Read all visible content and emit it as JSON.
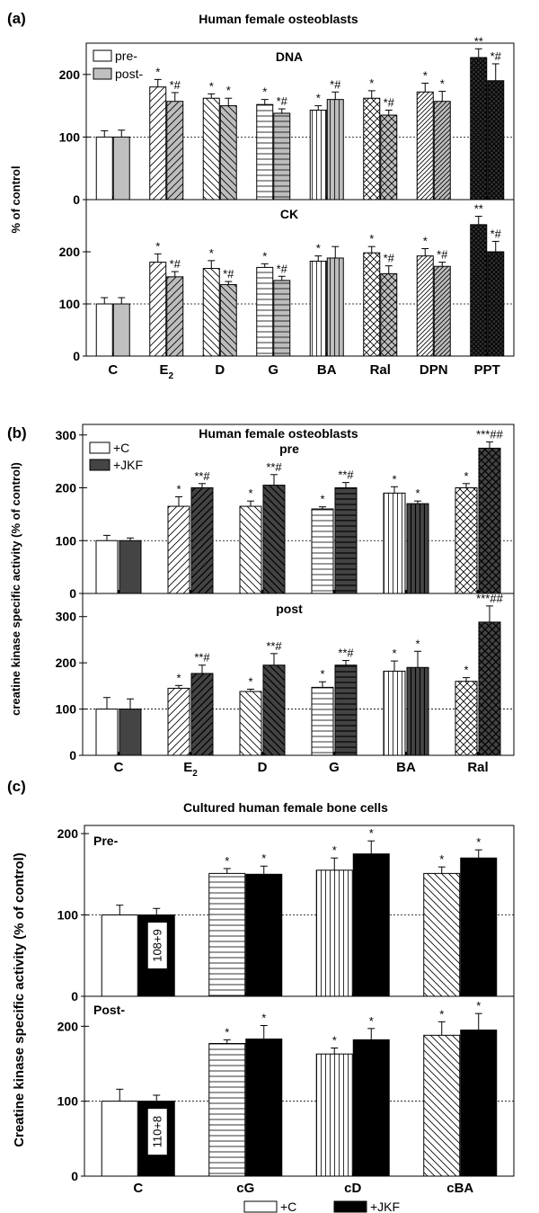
{
  "chart_data": [
    {
      "panel_label": "(a)",
      "type": "bar",
      "title": "Human female osteoblasts",
      "ylabel": "% of control",
      "categories": [
        "C",
        "E",
        "D",
        "G",
        "BA",
        "Ral",
        "DPN",
        "PPT"
      ],
      "category_subscripts": [
        "",
        "2",
        "",
        "",
        "",
        "",
        "",
        ""
      ],
      "series_names": [
        "pre-",
        "post-"
      ],
      "subplots": [
        {
          "title": "DNA",
          "ylim": [
            0,
            250
          ],
          "yticks": [
            "0",
            "100",
            "200"
          ],
          "reference_line": 100,
          "series": [
            {
              "name": "pre-",
              "values": [
                100,
                180,
                162,
                152,
                143,
                162,
                172,
                227
              ],
              "errors": [
                10,
                12,
                7,
                8,
                7,
                12,
                14,
                14
              ],
              "annotations": [
                "",
                "*",
                "*",
                "*",
                "*",
                "*",
                "*",
                "**"
              ]
            },
            {
              "name": "post-",
              "values": [
                100,
                157,
                150,
                138,
                160,
                135,
                157,
                190
              ],
              "errors": [
                11,
                14,
                12,
                7,
                12,
                8,
                16,
                27
              ],
              "annotations": [
                "",
                "*#",
                "*",
                "*#",
                "*#",
                "*#",
                "*",
                "*#"
              ]
            }
          ]
        },
        {
          "title": "CK",
          "ylim": [
            0,
            300
          ],
          "yticks": [
            "0",
            "100",
            "200"
          ],
          "reference_line": 100,
          "series": [
            {
              "name": "pre-",
              "values": [
                100,
                180,
                168,
                170,
                182,
                198,
                192,
                252
              ],
              "errors": [
                12,
                16,
                15,
                7,
                10,
                12,
                14,
                16
              ],
              "annotations": [
                "",
                "*",
                "*",
                "*",
                "*",
                "*",
                "*",
                "**"
              ]
            },
            {
              "name": "post-",
              "values": [
                100,
                152,
                137,
                145,
                188,
                158,
                172,
                200
              ],
              "errors": [
                12,
                10,
                6,
                8,
                22,
                15,
                8,
                20
              ],
              "annotations": [
                "",
                "*#",
                "*#",
                "*#",
                "",
                "*#",
                "*#",
                "*#"
              ]
            }
          ]
        }
      ]
    },
    {
      "panel_label": "(b)",
      "type": "bar",
      "title": "Human female osteoblasts",
      "ylabel": "creatine kinase specific activity  (% of control)",
      "categories": [
        "C",
        "E",
        "D",
        "G",
        "BA",
        "Ral"
      ],
      "category_subscripts": [
        "",
        "2",
        "",
        "",
        "",
        ""
      ],
      "series_names": [
        "+C",
        "+JKF"
      ],
      "subplots": [
        {
          "title": "pre",
          "ylim": [
            0,
            320
          ],
          "yticks": [
            "0",
            "100",
            "200",
            "300"
          ],
          "reference_line": 100,
          "series": [
            {
              "name": "+C",
              "values": [
                100,
                165,
                165,
                160,
                190,
                200
              ],
              "errors": [
                10,
                18,
                10,
                4,
                12,
                8
              ],
              "annotations": [
                "",
                "*",
                "*",
                "*",
                "*",
                "*"
              ]
            },
            {
              "name": "+JKF",
              "values": [
                100,
                200,
                205,
                200,
                170,
                275
              ],
              "errors": [
                5,
                8,
                20,
                10,
                5,
                12
              ],
              "annotations": [
                "",
                "**#",
                "**#",
                "**#",
                "*",
                "***##"
              ]
            }
          ]
        },
        {
          "title": "post",
          "ylim": [
            0,
            350
          ],
          "yticks": [
            "0",
            "100",
            "200",
            "300"
          ],
          "reference_line": 100,
          "series": [
            {
              "name": "+C",
              "values": [
                100,
                145,
                138,
                147,
                182,
                160
              ],
              "errors": [
                25,
                6,
                5,
                12,
                22,
                8
              ],
              "annotations": [
                "",
                "*",
                "*",
                "*",
                "*",
                "*"
              ]
            },
            {
              "name": "+JKF",
              "values": [
                100,
                177,
                195,
                195,
                190,
                288
              ],
              "errors": [
                22,
                18,
                25,
                10,
                35,
                35
              ],
              "annotations": [
                "",
                "**#",
                "**#",
                "**#",
                "*",
                "***##"
              ]
            }
          ]
        }
      ]
    },
    {
      "panel_label": "(c)",
      "type": "bar",
      "title": "Cultured human female bone cells",
      "ylabel": "Creatine kinase specific activity (% of control)",
      "categories": [
        "C",
        "cG",
        "cD",
        "cBA"
      ],
      "category_subscripts": [
        "",
        "",
        "",
        ""
      ],
      "series_names": [
        "+C",
        "+JKF"
      ],
      "subplots": [
        {
          "title": "Pre-",
          "ylim": [
            0,
            210
          ],
          "yticks": [
            "0",
            "100",
            "200"
          ],
          "reference_line": 100,
          "box_label": "108+9",
          "series": [
            {
              "name": "+C",
              "values": [
                100,
                151,
                155,
                151
              ],
              "errors": [
                12,
                6,
                15,
                8
              ],
              "annotations": [
                "",
                "*",
                "*",
                "*"
              ]
            },
            {
              "name": "+JKF",
              "values": [
                100,
                150,
                175,
                170
              ],
              "errors": [
                8,
                10,
                16,
                10
              ],
              "annotations": [
                "",
                "*",
                "*",
                "*"
              ]
            }
          ]
        },
        {
          "title": "Post-",
          "ylim": [
            0,
            240
          ],
          "yticks": [
            "0",
            "100",
            "200"
          ],
          "reference_line": 100,
          "box_label": "110+8",
          "series": [
            {
              "name": "+C",
              "values": [
                100,
                177,
                163,
                188
              ],
              "errors": [
                16,
                5,
                8,
                18
              ],
              "annotations": [
                "",
                "*",
                "*",
                "*"
              ]
            },
            {
              "name": "+JKF",
              "values": [
                100,
                183,
                182,
                195
              ],
              "errors": [
                8,
                18,
                15,
                22
              ],
              "annotations": [
                "",
                "*",
                "*",
                "*"
              ]
            }
          ]
        }
      ]
    }
  ]
}
